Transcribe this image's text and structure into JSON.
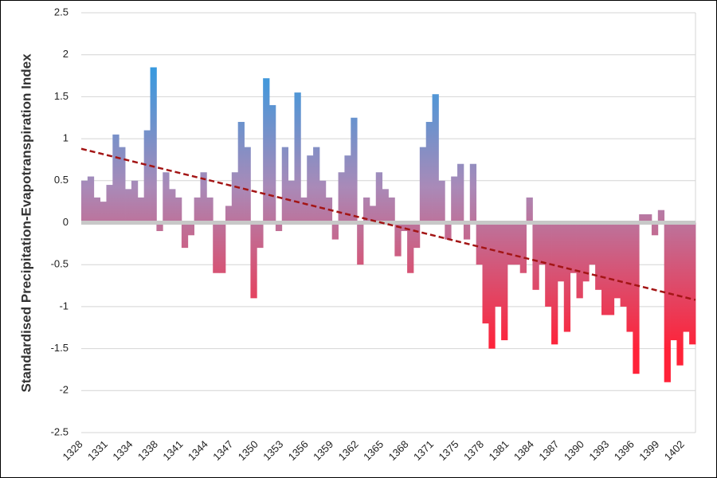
{
  "chart_data": {
    "type": "bar",
    "y_label": "Standardised Precipitation-Evapotranspiration Index",
    "categories": [
      "1328",
      null,
      null,
      null,
      "1331",
      null,
      null,
      null,
      "1334",
      null,
      null,
      null,
      "1338",
      null,
      null,
      null,
      "1341",
      null,
      null,
      null,
      "1344",
      null,
      null,
      null,
      "1347",
      null,
      null,
      null,
      "1350",
      null,
      null,
      null,
      "1353",
      null,
      null,
      null,
      "1356",
      null,
      null,
      null,
      "1359",
      null,
      null,
      null,
      "1362",
      null,
      null,
      null,
      "1365",
      null,
      null,
      null,
      "1368",
      null,
      null,
      null,
      "1371",
      null,
      null,
      null,
      "1375",
      null,
      null,
      null,
      "1378",
      null,
      null,
      null,
      "1381",
      null,
      null,
      null,
      "1384",
      null,
      null,
      null,
      "1387",
      null,
      null,
      null,
      "1390",
      null,
      null,
      null,
      "1393",
      null,
      null,
      null,
      "1396",
      null,
      null,
      null,
      "1399",
      null,
      null,
      null,
      "1402",
      null
    ],
    "values": [
      0.5,
      0.55,
      0.3,
      0.25,
      0.45,
      1.05,
      0.9,
      0.4,
      0.5,
      0.3,
      1.1,
      1.85,
      -0.1,
      0.6,
      0.4,
      0.3,
      -0.3,
      -0.15,
      0.3,
      0.6,
      0.3,
      -0.6,
      -0.6,
      0.2,
      0.6,
      1.2,
      0.9,
      -0.9,
      -0.3,
      1.72,
      1.4,
      -0.1,
      0.9,
      0.5,
      1.55,
      0.3,
      0.8,
      0.9,
      0.5,
      0.3,
      -0.2,
      0.6,
      0.8,
      1.25,
      -0.5,
      0.3,
      0.2,
      0.6,
      0.4,
      0.3,
      -0.4,
      -0.1,
      -0.6,
      -0.3,
      0.9,
      1.2,
      1.53,
      0.5,
      -0.2,
      0.55,
      0.7,
      -0.2,
      0.7,
      -0.5,
      -1.2,
      -1.5,
      -1.0,
      -1.4,
      -0.5,
      -0.5,
      -0.6,
      0.3,
      -0.8,
      -0.5,
      -1.0,
      -1.45,
      -0.7,
      -1.3,
      -0.6,
      -0.9,
      -0.7,
      -0.5,
      -0.8,
      -1.1,
      -1.1,
      -0.9,
      -1.0,
      -1.3,
      -1.8,
      0.1,
      0.1,
      -0.15,
      0.15,
      -1.9,
      -1.4,
      -1.7,
      -1.3,
      -1.45
    ],
    "colors": {
      "high": "#2b9be3",
      "mid": "#a98ab8",
      "low": "#ff2238"
    },
    "trend": {
      "values": [
        0.88,
        -0.92
      ],
      "color": "#a31515"
    },
    "ylim": [
      -2.5,
      2.5
    ],
    "yticks": [
      -2.5,
      -2,
      -1.5,
      -1,
      -0.5,
      0,
      0.5,
      1,
      1.5,
      2,
      2.5
    ],
    "grid": true
  }
}
